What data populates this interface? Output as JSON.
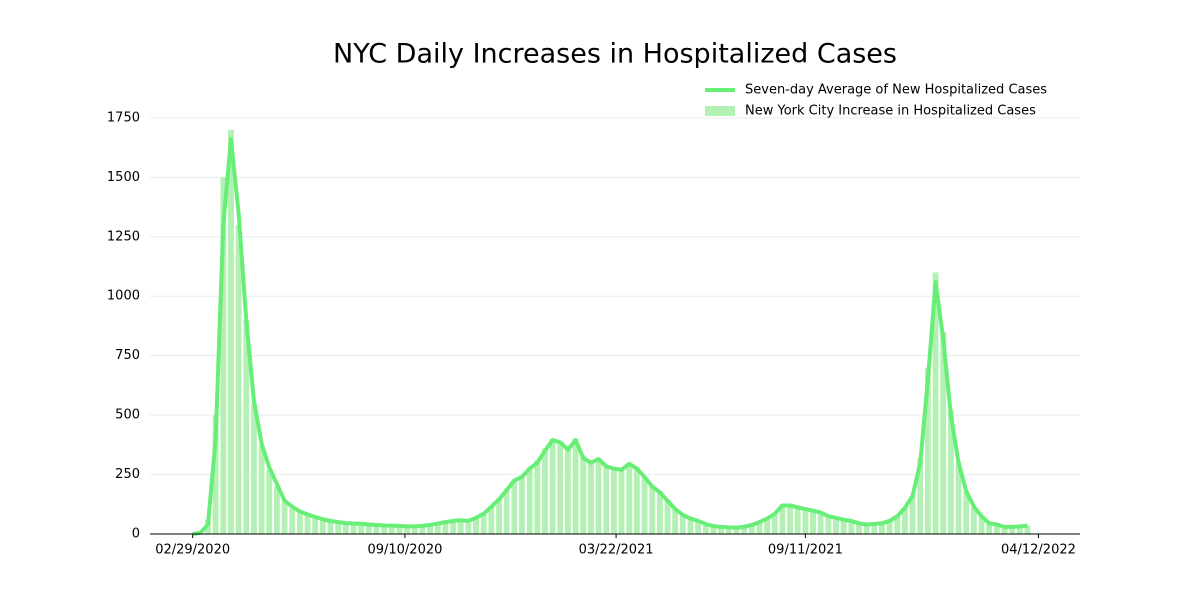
{
  "chart_data": {
    "type": "bar",
    "title": "NYC Daily Increases in Hospitalized Cases",
    "x": [
      "02/29/2020",
      "03/07/2020",
      "03/14/2020",
      "03/21/2020",
      "03/28/2020",
      "04/04/2020",
      "04/11/2020",
      "04/18/2020",
      "04/25/2020",
      "05/02/2020",
      "05/09/2020",
      "05/16/2020",
      "05/23/2020",
      "05/30/2020",
      "06/06/2020",
      "06/13/2020",
      "06/20/2020",
      "06/27/2020",
      "07/04/2020",
      "07/11/2020",
      "07/18/2020",
      "07/25/2020",
      "08/01/2020",
      "08/08/2020",
      "08/15/2020",
      "08/22/2020",
      "08/29/2020",
      "09/05/2020",
      "09/12/2020",
      "09/19/2020",
      "09/26/2020",
      "10/03/2020",
      "10/10/2020",
      "10/17/2020",
      "10/24/2020",
      "10/31/2020",
      "11/07/2020",
      "11/14/2020",
      "11/21/2020",
      "11/28/2020",
      "12/05/2020",
      "12/12/2020",
      "12/19/2020",
      "12/26/2020",
      "01/02/2021",
      "01/09/2021",
      "01/16/2021",
      "01/23/2021",
      "01/30/2021",
      "02/06/2021",
      "02/13/2021",
      "02/20/2021",
      "02/27/2021",
      "03/06/2021",
      "03/13/2021",
      "03/20/2021",
      "03/27/2021",
      "04/03/2021",
      "04/10/2021",
      "04/17/2021",
      "04/24/2021",
      "05/01/2021",
      "05/08/2021",
      "05/15/2021",
      "05/22/2021",
      "05/29/2021",
      "06/05/2021",
      "06/12/2021",
      "06/19/2021",
      "06/26/2021",
      "07/03/2021",
      "07/10/2021",
      "07/17/2021",
      "07/24/2021",
      "07/31/2021",
      "08/07/2021",
      "08/14/2021",
      "08/21/2021",
      "08/28/2021",
      "09/04/2021",
      "09/11/2021",
      "09/18/2021",
      "09/25/2021",
      "10/02/2021",
      "10/09/2021",
      "10/16/2021",
      "10/23/2021",
      "10/30/2021",
      "11/06/2021",
      "11/13/2021",
      "11/20/2021",
      "11/27/2021",
      "12/04/2021",
      "12/11/2021",
      "12/18/2021",
      "12/25/2021",
      "01/01/2022",
      "01/08/2022",
      "01/15/2022",
      "01/22/2022",
      "01/29/2022",
      "02/05/2022",
      "02/12/2022",
      "02/19/2022",
      "02/26/2022",
      "03/05/2022",
      "03/12/2022",
      "03/19/2022",
      "03/26/2022",
      "04/02/2022"
    ],
    "series": [
      {
        "name": "Seven-day Average of New Hospitalized Cases",
        "type": "line",
        "color": "#66ee77",
        "values": [
          0,
          5,
          40,
          400,
          1300,
          1660,
          1350,
          900,
          560,
          380,
          280,
          210,
          140,
          115,
          95,
          82,
          72,
          62,
          55,
          50,
          46,
          44,
          43,
          40,
          38,
          36,
          35,
          34,
          32,
          32,
          34,
          38,
          44,
          50,
          55,
          58,
          55,
          68,
          85,
          115,
          145,
          185,
          225,
          240,
          275,
          300,
          350,
          395,
          385,
          355,
          395,
          320,
          300,
          315,
          285,
          275,
          270,
          295,
          275,
          240,
          200,
          175,
          140,
          105,
          80,
          65,
          55,
          42,
          33,
          30,
          28,
          27,
          30,
          38,
          50,
          65,
          85,
          120,
          120,
          112,
          105,
          98,
          90,
          75,
          68,
          60,
          55,
          45,
          40,
          42,
          45,
          55,
          75,
          110,
          160,
          300,
          650,
          1060,
          820,
          500,
          300,
          180,
          115,
          75,
          45,
          40,
          30,
          30,
          32,
          35
        ]
      },
      {
        "name": "New York City Increase in Hospitalized Cases",
        "type": "bar",
        "color": "#b3f0b3",
        "values": [
          0,
          5,
          60,
          500,
          1500,
          1700,
          1300,
          900,
          550,
          370,
          270,
          200,
          140,
          110,
          95,
          80,
          70,
          60,
          55,
          50,
          45,
          45,
          43,
          40,
          38,
          36,
          35,
          34,
          32,
          32,
          35,
          40,
          45,
          50,
          55,
          60,
          55,
          70,
          90,
          120,
          150,
          190,
          230,
          245,
          280,
          310,
          360,
          400,
          390,
          360,
          400,
          330,
          300,
          320,
          290,
          275,
          270,
          300,
          280,
          240,
          200,
          180,
          140,
          105,
          80,
          65,
          55,
          40,
          33,
          30,
          28,
          27,
          30,
          40,
          50,
          65,
          85,
          125,
          120,
          110,
          105,
          95,
          90,
          75,
          65,
          60,
          55,
          45,
          40,
          42,
          45,
          55,
          75,
          110,
          160,
          320,
          700,
          1100,
          850,
          520,
          300,
          180,
          110,
          70,
          45,
          40,
          28,
          30,
          32,
          35
        ]
      }
    ],
    "xlim": [
      "01/21/2020",
      "05/20/2022"
    ],
    "xticks": [
      "02/29/2020",
      "09/10/2020",
      "03/22/2021",
      "09/11/2021",
      "04/12/2022"
    ],
    "ylim": [
      0,
      1880
    ],
    "yticks": [
      0,
      250,
      500,
      750,
      1000,
      1250,
      1500,
      1750
    ],
    "grid": true,
    "legend": "upper right"
  }
}
